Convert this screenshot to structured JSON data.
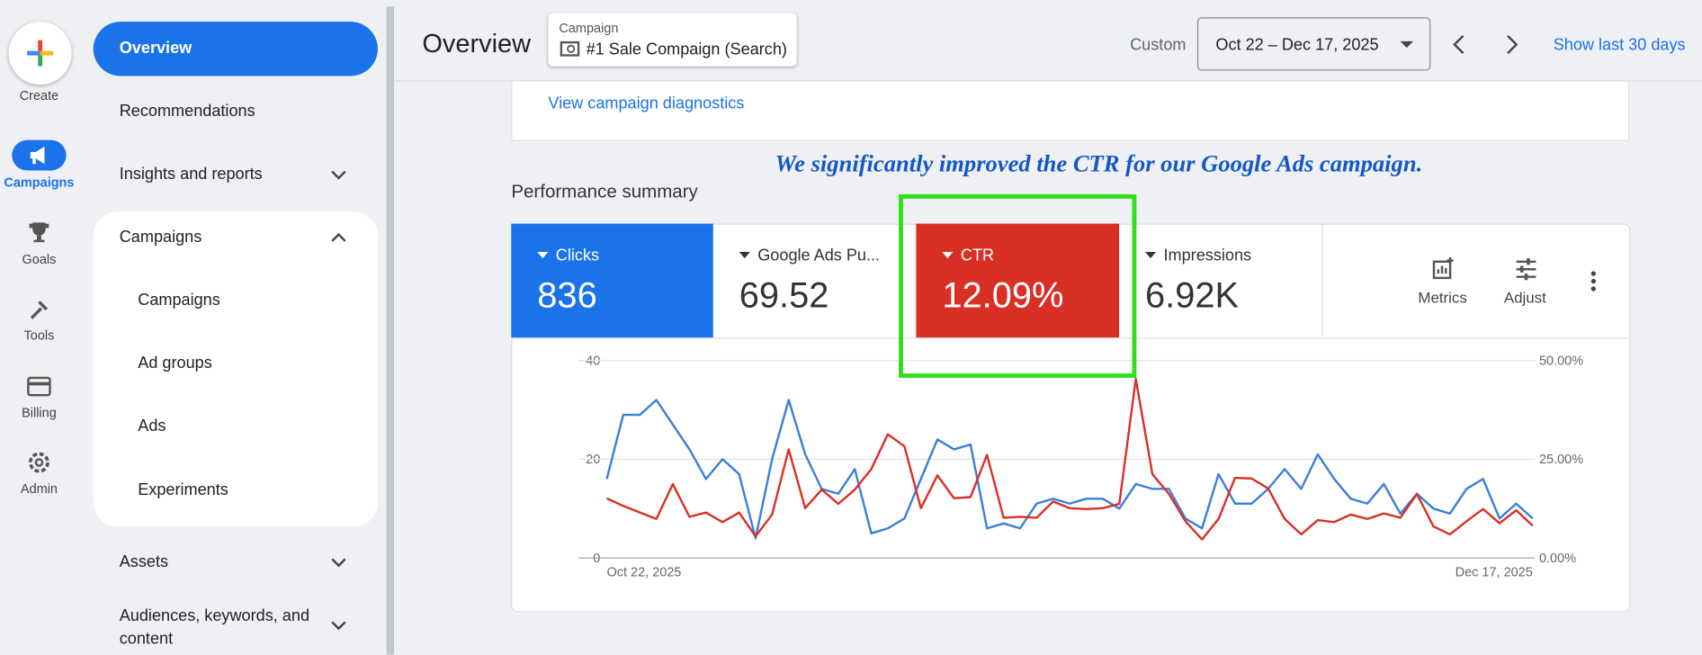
{
  "rail": {
    "create": "Create",
    "items": [
      "Campaigns",
      "Goals",
      "Tools",
      "Billing",
      "Admin"
    ]
  },
  "nav": {
    "overview": "Overview",
    "recommendations": "Recommendations",
    "insights": "Insights and reports",
    "campaigns_group": {
      "title": "Campaigns",
      "items": [
        "Campaigns",
        "Ad groups",
        "Ads",
        "Experiments"
      ]
    },
    "assets": "Assets",
    "audiences": "Audiences, keywords, and content"
  },
  "header": {
    "title": "Overview",
    "campaign_label": "Campaign",
    "campaign_name": "#1 Sale Compaign (Search)",
    "range_label": "Custom",
    "date_range": "Oct 22 – Dec 17, 2025",
    "show_last": "Show last 30 days"
  },
  "diagnostics_link": "View campaign diagnostics",
  "annotation": "We significantly improved the CTR for our Google Ads campaign.",
  "performance_title": "Performance summary",
  "tiles": [
    {
      "value": "836"
    },
    {
      "label": "Google Ads Pu...",
      "value": "69.52"
    },
    {
      "value": "12.09%"
    },
    {
      "label": "Impressions",
      "value": "6.92K"
    }
  ],
  "tile_actions": [
    "Metrics",
    "Adjust"
  ],
  "chart_data": {
    "type": "line",
    "categories": [
      "Oct 22, 2025",
      null,
      null,
      null,
      null,
      null,
      null,
      null,
      null,
      null,
      null,
      null,
      null,
      null,
      null,
      null,
      null,
      null,
      null,
      null,
      null,
      null,
      null,
      null,
      null,
      null,
      null,
      null,
      null,
      null,
      null,
      null,
      null,
      null,
      null,
      null,
      null,
      null,
      null,
      null,
      null,
      null,
      null,
      null,
      null,
      null,
      null,
      null,
      null,
      null,
      null,
      null,
      null,
      null,
      null,
      null,
      "Dec 17, 2025"
    ],
    "series": [
      {
        "name": "Clicks",
        "color": "#3a7fdc",
        "values": [
          16,
          29,
          29,
          32,
          27,
          22,
          16,
          20,
          17,
          4,
          20,
          32,
          21,
          14,
          13,
          18,
          5,
          6,
          8,
          16,
          24,
          22,
          23,
          6,
          7,
          6,
          11,
          12,
          11,
          12,
          12,
          10,
          15,
          14,
          14,
          8,
          6,
          17,
          11,
          11,
          14,
          18,
          14,
          21,
          16,
          12,
          11,
          15,
          9,
          13,
          10,
          9,
          14,
          16,
          8,
          11,
          8
        ]
      },
      {
        "name": "CTR",
        "color": "#d93025",
        "axis": "y2",
        "values": [
          15.1,
          13.2,
          11.5,
          9.9,
          18.7,
          10.4,
          11.5,
          9.1,
          11.5,
          5.5,
          11,
          27.5,
          12.6,
          17.3,
          13.7,
          17.3,
          22.5,
          31.3,
          28.3,
          12.6,
          20.9,
          15.1,
          15.4,
          26.1,
          10.2,
          10.4,
          10.2,
          14.3,
          12.6,
          12.4,
          12.6,
          13.7,
          45.3,
          21.2,
          16.2,
          9.3,
          4.7,
          9.9,
          20.3,
          20.1,
          17.6,
          9.9,
          6,
          9.6,
          9.1,
          11,
          9.9,
          11.3,
          10.2,
          16.2,
          8,
          6,
          9.3,
          12.4,
          8.8,
          12.1,
          8.2
        ]
      }
    ],
    "ylim": [
      0,
      40
    ],
    "yticks": [
      0,
      20,
      40
    ],
    "y2lim": [
      0,
      50
    ],
    "y2ticks": [
      {
        "value": 0,
        "label": "0.00%"
      },
      {
        "value": 25,
        "label": "25.00%"
      },
      {
        "value": 50,
        "label": "50.00%"
      }
    ],
    "grid": true
  }
}
